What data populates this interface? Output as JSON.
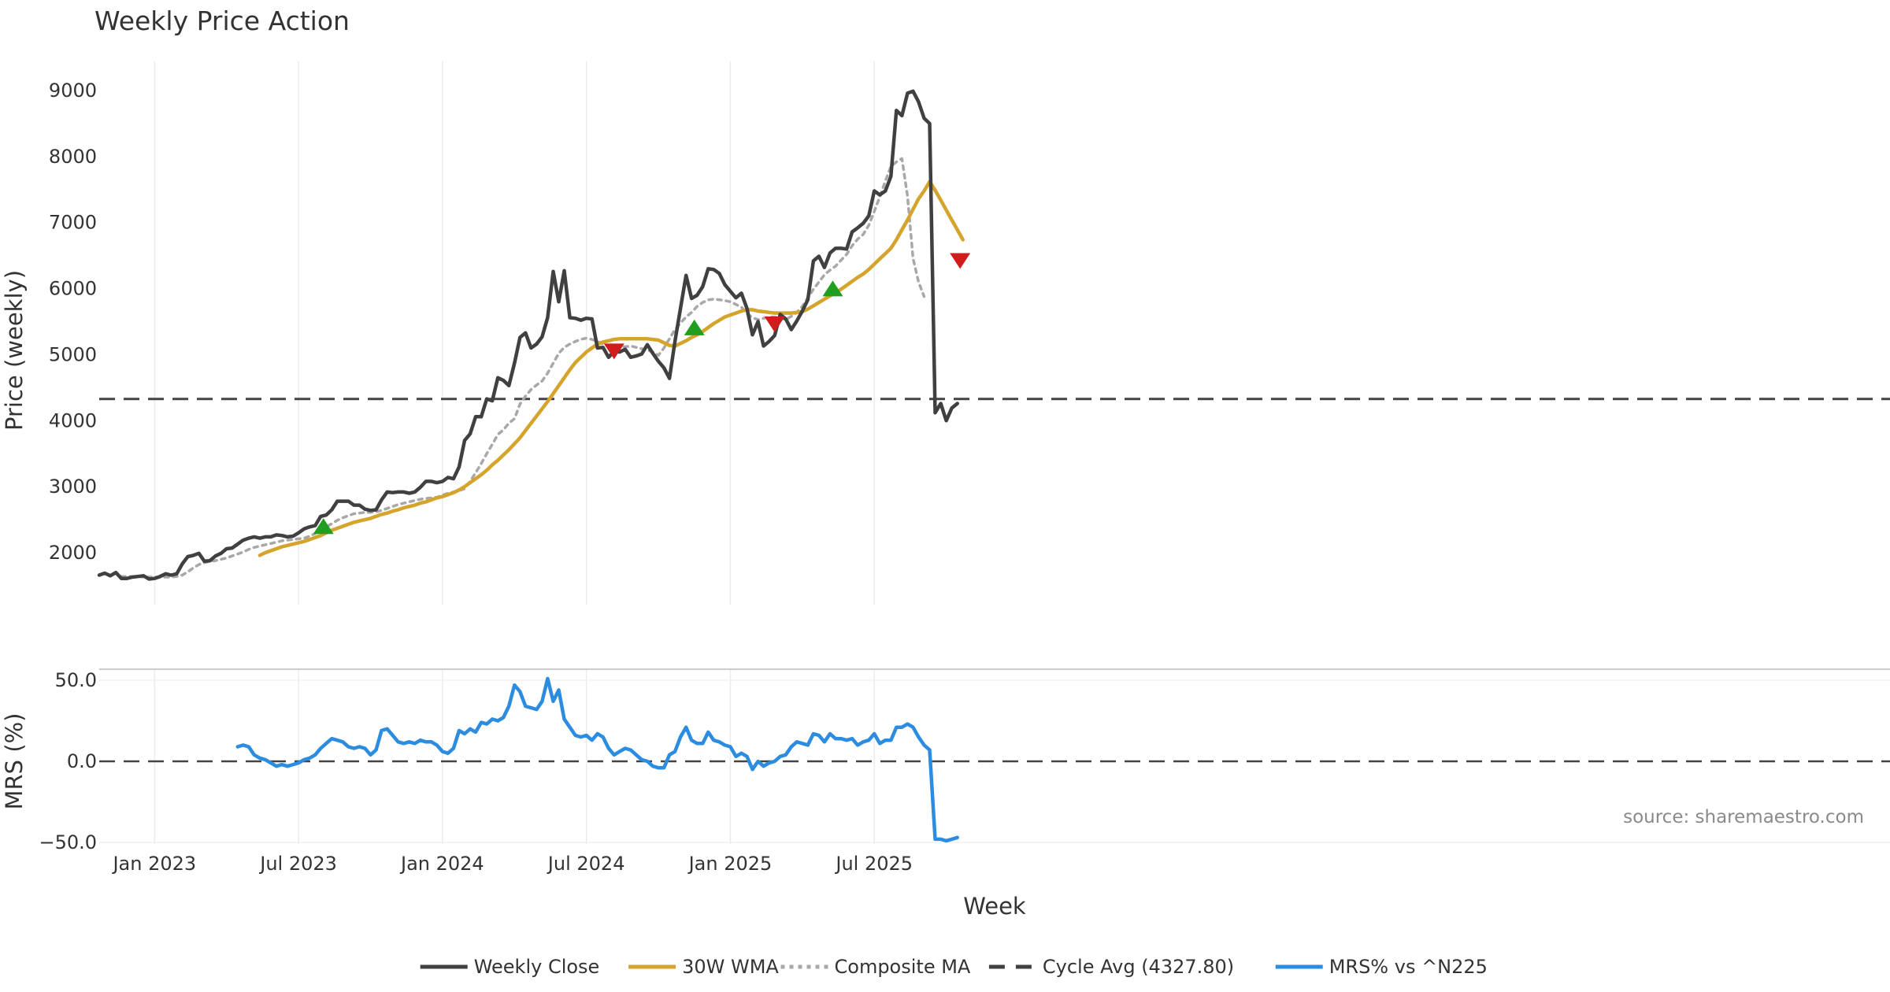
{
  "chart_data": {
    "type": "line",
    "title": "Weekly Price Action",
    "xlabel": "Week",
    "source_note": "source: sharemaestro.com",
    "x_ticks": [
      {
        "label": "Jan 2023",
        "week": 10
      },
      {
        "label": "Jul 2023",
        "week": 36
      },
      {
        "label": "Jan 2024",
        "week": 62
      },
      {
        "label": "Jul 2024",
        "week": 88
      },
      {
        "label": "Jan 2025",
        "week": 114
      },
      {
        "label": "Jul 2025",
        "week": 140
      }
    ],
    "price_panel": {
      "ylabel": "Price (weekly)",
      "ylim": [
        1200,
        9400
      ],
      "yticks": [
        2000,
        3000,
        4000,
        5000,
        6000,
        7000,
        8000,
        9000
      ],
      "cycle_avg": 4327.8,
      "series": [
        {
          "name": "Weekly Close",
          "color": "#404040",
          "style": "solid",
          "start_week": 0,
          "values": [
            1660,
            1690,
            1650,
            1700,
            1610,
            1610,
            1630,
            1640,
            1650,
            1600,
            1610,
            1640,
            1680,
            1660,
            1680,
            1830,
            1940,
            1960,
            1990,
            1870,
            1880,
            1950,
            1990,
            2060,
            2070,
            2130,
            2190,
            2220,
            2240,
            2220,
            2240,
            2240,
            2270,
            2260,
            2240,
            2250,
            2300,
            2360,
            2390,
            2410,
            2550,
            2570,
            2650,
            2780,
            2780,
            2780,
            2720,
            2720,
            2660,
            2640,
            2650,
            2800,
            2920,
            2910,
            2920,
            2920,
            2900,
            2920,
            2990,
            3080,
            3080,
            3060,
            3080,
            3140,
            3120,
            3300,
            3700,
            3800,
            4060,
            4060,
            4330,
            4300,
            4650,
            4610,
            4530,
            4870,
            5260,
            5330,
            5100,
            5160,
            5270,
            5560,
            6260,
            5800,
            6270,
            5560,
            5550,
            5520,
            5550,
            5540,
            5100,
            5110,
            4960,
            5050,
            5040,
            5080,
            4960,
            4980,
            5010,
            5150,
            5020,
            4900,
            4800,
            4640,
            5200,
            5700,
            6200,
            5850,
            5900,
            6030,
            6300,
            6290,
            6230,
            6060,
            5960,
            5860,
            5930,
            5700,
            5300,
            5500,
            5130,
            5200,
            5290,
            5610,
            5540,
            5380,
            5510,
            5660,
            5830,
            6420,
            6490,
            6320,
            6540,
            6610,
            6610,
            6600,
            6860,
            6920,
            6990,
            7100,
            7480,
            7420,
            7480,
            7700,
            8700,
            8620,
            8960,
            8990,
            8830,
            8580,
            8500,
            4120,
            4260,
            4000,
            4190,
            4260
          ]
        },
        {
          "name": "30W WMA",
          "color": "#d4a42c",
          "style": "solid",
          "start_week": 29,
          "values": [
            1960,
            2000,
            2030,
            2060,
            2090,
            2110,
            2130,
            2150,
            2170,
            2200,
            2230,
            2260,
            2300,
            2340,
            2370,
            2400,
            2430,
            2460,
            2480,
            2500,
            2520,
            2550,
            2580,
            2600,
            2630,
            2650,
            2680,
            2700,
            2720,
            2750,
            2770,
            2800,
            2830,
            2850,
            2880,
            2910,
            2950,
            3000,
            3060,
            3120,
            3180,
            3250,
            3330,
            3400,
            3480,
            3560,
            3650,
            3740,
            3850,
            3960,
            4070,
            4180,
            4290,
            4410,
            4530,
            4650,
            4770,
            4880,
            4960,
            5040,
            5100,
            5160,
            5190,
            5210,
            5230,
            5240,
            5240,
            5240,
            5240,
            5240,
            5240,
            5230,
            5220,
            5180,
            5140,
            5130,
            5170,
            5210,
            5260,
            5300,
            5350,
            5410,
            5470,
            5520,
            5570,
            5600,
            5630,
            5660,
            5680,
            5680,
            5660,
            5650,
            5640,
            5630,
            5630,
            5630,
            5630,
            5640,
            5650,
            5690,
            5740,
            5790,
            5840,
            5890,
            5940,
            5990,
            6050,
            6110,
            6170,
            6220,
            6290,
            6370,
            6450,
            6530,
            6610,
            6740,
            6890,
            7040,
            7200,
            7360,
            7480,
            7620,
            7490,
            7340,
            7190,
            7040,
            6890,
            6740
          ]
        },
        {
          "name": "Composite MA",
          "color": "#a8a8a8",
          "style": "dotted",
          "start_week": 4,
          "values": [
            1640,
            1640,
            1640,
            1640,
            1630,
            1630,
            1630,
            1630,
            1630,
            1630,
            1640,
            1660,
            1710,
            1770,
            1820,
            1850,
            1870,
            1880,
            1900,
            1920,
            1950,
            1980,
            2010,
            2050,
            2080,
            2100,
            2120,
            2140,
            2160,
            2180,
            2190,
            2200,
            2210,
            2220,
            2250,
            2290,
            2340,
            2390,
            2440,
            2490,
            2530,
            2560,
            2590,
            2600,
            2610,
            2610,
            2620,
            2640,
            2670,
            2700,
            2730,
            2750,
            2770,
            2790,
            2810,
            2820,
            2830,
            2840,
            2870,
            2900,
            2920,
            2940,
            2970,
            3080,
            3210,
            3350,
            3500,
            3640,
            3790,
            3860,
            3960,
            4030,
            4250,
            4370,
            4470,
            4540,
            4600,
            4720,
            4870,
            5020,
            5110,
            5160,
            5200,
            5230,
            5250,
            5230,
            5200,
            5160,
            5130,
            5120,
            5120,
            5120,
            5130,
            5110,
            5090,
            5070,
            5040,
            4990,
            5100,
            5240,
            5380,
            5480,
            5570,
            5640,
            5730,
            5790,
            5830,
            5840,
            5830,
            5820,
            5800,
            5760,
            5720,
            5620,
            5560,
            5530,
            5550,
            5570,
            5570,
            5560,
            5530,
            5580,
            5640,
            5730,
            5860,
            5990,
            6100,
            6210,
            6280,
            6340,
            6430,
            6520,
            6650,
            6750,
            6820,
            6960,
            7170,
            7390,
            7630,
            7850,
            7920,
            7970,
            7400,
            6460,
            6100,
            5880
          ]
        }
      ],
      "signals": [
        {
          "type": "buy",
          "color": "#1f9e1f",
          "week": 40.5,
          "value": 2390
        },
        {
          "type": "sell",
          "color": "#d01c1c",
          "week": 93,
          "value": 5060
        },
        {
          "type": "buy",
          "color": "#1f9e1f",
          "week": 107.5,
          "value": 5400
        },
        {
          "type": "sell",
          "color": "#d01c1c",
          "week": 122,
          "value": 5470
        },
        {
          "type": "buy",
          "color": "#1f9e1f",
          "week": 132.5,
          "value": 5990
        },
        {
          "type": "sell",
          "color": "#d01c1c",
          "week": 155.5,
          "value": 6430
        }
      ]
    },
    "mrs_panel": {
      "ylabel": "MRS (%)",
      "ylim": [
        -52,
        55
      ],
      "yticks": [
        {
          "value": 50,
          "label": "50.0"
        },
        {
          "value": 0,
          "label": "0.0"
        },
        {
          "value": -50,
          "label": "−50.0"
        }
      ],
      "reference": 0,
      "series": [
        {
          "name": "MRS% vs ^N225",
          "color": "#2b8ce0",
          "style": "solid",
          "start_week": 25,
          "values": [
            9,
            10,
            9,
            4,
            2,
            1,
            -1,
            -3,
            -2,
            -3,
            -2,
            -1,
            1,
            2,
            4,
            8,
            11,
            14,
            13,
            12,
            9,
            8,
            9,
            8,
            4,
            7,
            19,
            20,
            16,
            12,
            11,
            12,
            11,
            13,
            12,
            12,
            10,
            6,
            5,
            8,
            19,
            17,
            20,
            18,
            24,
            23,
            26,
            25,
            27,
            34,
            47,
            43,
            34,
            33,
            32,
            37,
            51,
            37,
            44,
            26,
            21,
            16,
            15,
            16,
            13,
            17,
            15,
            8,
            4,
            6,
            8,
            7,
            4,
            1,
            0,
            -3,
            -4,
            -4,
            4,
            6,
            15,
            21,
            13,
            11,
            11,
            18,
            13,
            12,
            10,
            9,
            3,
            5,
            3,
            -5,
            0,
            -3,
            -1,
            0,
            3,
            4,
            9,
            12,
            11,
            10,
            17,
            16,
            12,
            17,
            14,
            14,
            13,
            14,
            10,
            12,
            13,
            17,
            11,
            13,
            13,
            21,
            21,
            23,
            21,
            15,
            10,
            7,
            -48,
            -48,
            -49,
            -48,
            -47
          ]
        }
      ]
    },
    "legend": [
      {
        "label": "Weekly Close",
        "color": "#404040",
        "style": "solid"
      },
      {
        "label": "30W WMA",
        "color": "#d4a42c",
        "style": "solid"
      },
      {
        "label": "Composite MA",
        "color": "#a8a8a8",
        "style": "dotted"
      },
      {
        "label": "Cycle Avg (4327.80)",
        "color": "#404040",
        "style": "dashed"
      },
      {
        "label": "MRS% vs ^N225",
        "color": "#2b8ce0",
        "style": "solid"
      }
    ]
  }
}
